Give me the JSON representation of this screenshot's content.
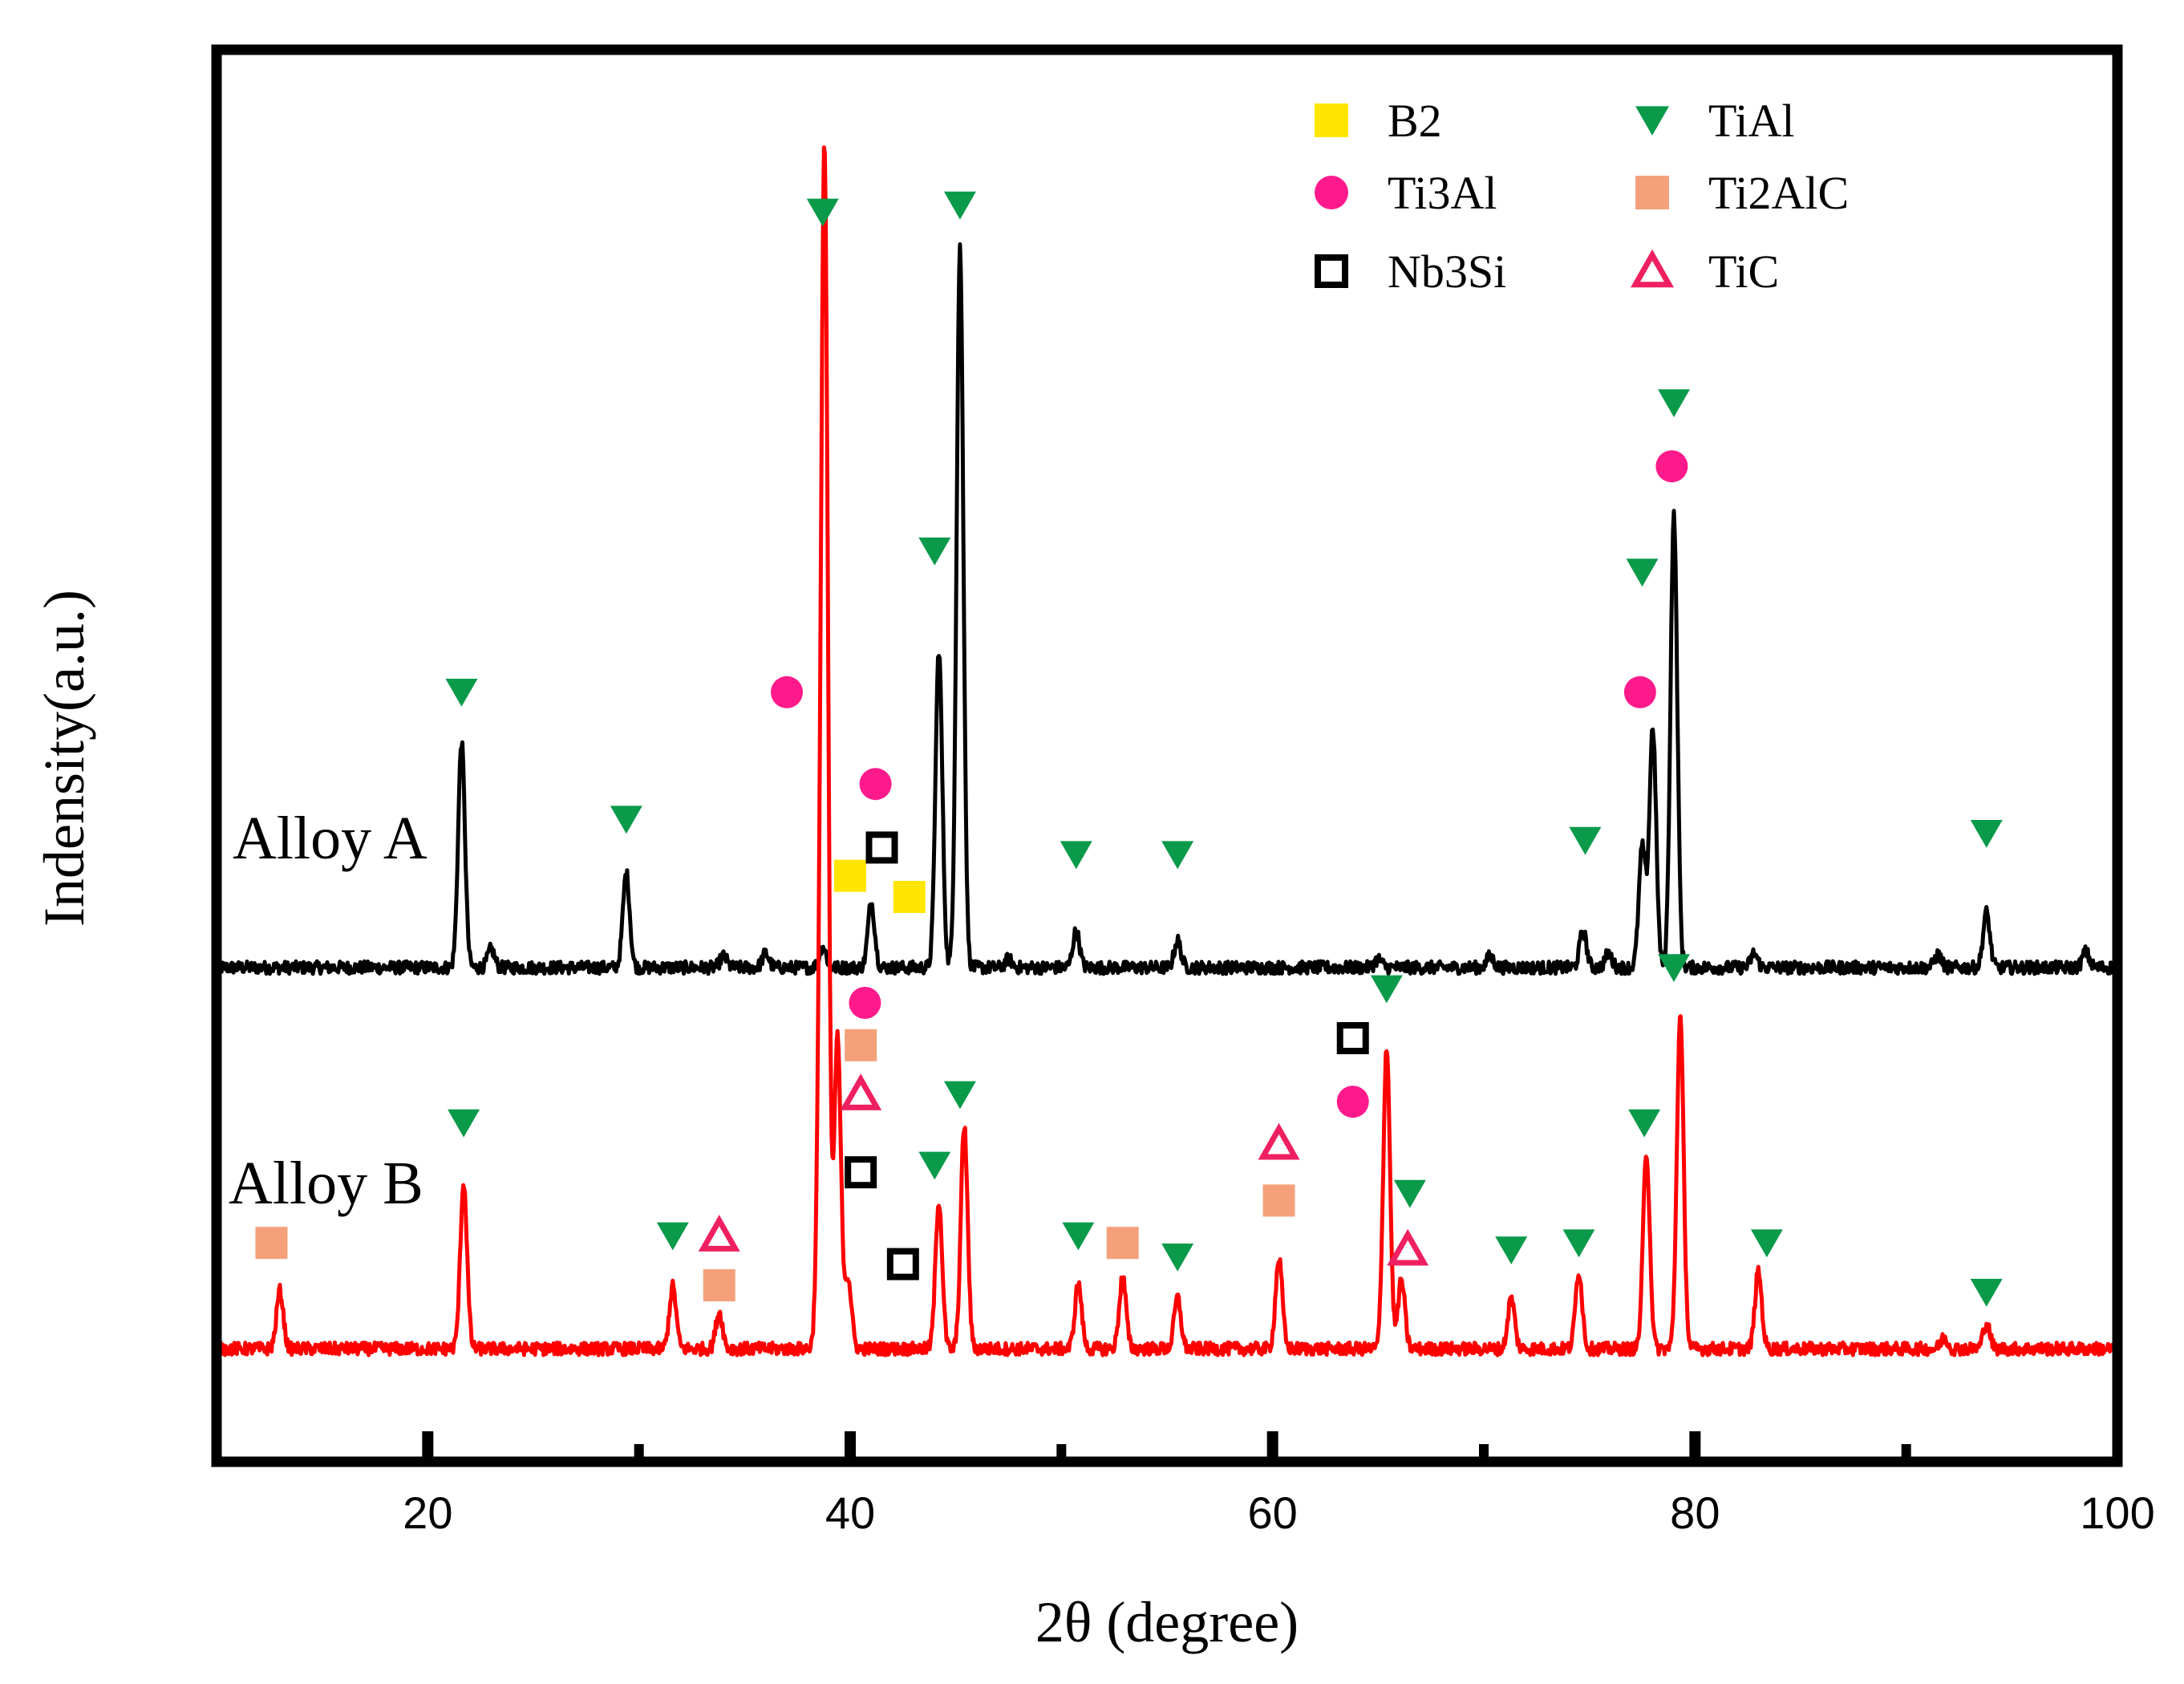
{
  "chart_data": {
    "type": "line",
    "title": "",
    "xlabel": "2θ (degree)",
    "ylabel": "Indensity(a.u.)",
    "xlim": [
      10,
      100
    ],
    "ylim": [
      0,
      100
    ],
    "xticks": [
      20,
      40,
      60,
      80,
      100
    ],
    "xtick_labels": [
      "20",
      "40",
      "60",
      "80",
      "100"
    ],
    "minor_xticks": [
      30,
      50,
      70,
      90
    ],
    "grid": false,
    "legend_position": "top-right",
    "legend": [
      {
        "key": "B2",
        "label": "B2",
        "marker": "filled-square",
        "color": "#ffe600"
      },
      {
        "key": "Ti3Al",
        "label": "Ti3Al",
        "marker": "filled-circle",
        "color": "#ff1a8c"
      },
      {
        "key": "Nb3Si",
        "label": "Nb3Si",
        "marker": "open-square",
        "color": "#000000"
      },
      {
        "key": "TiAl",
        "label": "TiAl",
        "marker": "down-triangle",
        "color": "#0a9a4a"
      },
      {
        "key": "Ti2AlC",
        "label": "Ti2AlC",
        "marker": "filled-square",
        "color": "#f4a07a"
      },
      {
        "key": "TiC",
        "label": "TiC",
        "marker": "open-triangle",
        "color": "#ee2060"
      }
    ],
    "series": [
      {
        "name": "Alloy A",
        "color": "#000000",
        "baseline": 35,
        "peaks": [
          {
            "x": 21.6,
            "h": 16
          },
          {
            "x": 23.0,
            "h": 1.3
          },
          {
            "x": 29.4,
            "h": 6.7
          },
          {
            "x": 34.0,
            "h": 0.8
          },
          {
            "x": 36.0,
            "h": 1.0
          },
          {
            "x": 38.7,
            "h": 1.5
          },
          {
            "x": 41.0,
            "h": 4.6
          },
          {
            "x": 44.2,
            "h": 22.5
          },
          {
            "x": 45.2,
            "h": 51
          },
          {
            "x": 47.5,
            "h": 0.6
          },
          {
            "x": 50.7,
            "h": 2.6
          },
          {
            "x": 55.5,
            "h": 1.9
          },
          {
            "x": 65.0,
            "h": 0.6
          },
          {
            "x": 70.3,
            "h": 0.8
          },
          {
            "x": 74.7,
            "h": 2.6
          },
          {
            "x": 75.9,
            "h": 1.0
          },
          {
            "x": 77.5,
            "h": 8.5
          },
          {
            "x": 78.0,
            "h": 17
          },
          {
            "x": 79.0,
            "h": 32
          },
          {
            "x": 82.8,
            "h": 1.0
          },
          {
            "x": 91.5,
            "h": 0.9
          },
          {
            "x": 93.8,
            "h": 3.9
          },
          {
            "x": 98.5,
            "h": 1.1
          }
        ]
      },
      {
        "name": "Alloy B",
        "color": "#ff0000",
        "baseline": 8,
        "peaks": [
          {
            "x": 13.0,
            "h": 4.1
          },
          {
            "x": 21.7,
            "h": 11.8
          },
          {
            "x": 31.6,
            "h": 4.4
          },
          {
            "x": 33.8,
            "h": 2.6
          },
          {
            "x": 38.6,
            "h": 17
          },
          {
            "x": 38.8,
            "h": 77
          },
          {
            "x": 39.4,
            "h": 22
          },
          {
            "x": 39.9,
            "h": 5
          },
          {
            "x": 44.2,
            "h": 10.5
          },
          {
            "x": 45.4,
            "h": 15.8
          },
          {
            "x": 50.8,
            "h": 4.6
          },
          {
            "x": 52.9,
            "h": 5.1
          },
          {
            "x": 55.5,
            "h": 3.6
          },
          {
            "x": 60.3,
            "h": 6.4
          },
          {
            "x": 65.4,
            "h": 21.5
          },
          {
            "x": 66.1,
            "h": 4.9
          },
          {
            "x": 71.3,
            "h": 3.6
          },
          {
            "x": 74.5,
            "h": 5.5
          },
          {
            "x": 77.7,
            "h": 13.9
          },
          {
            "x": 79.3,
            "h": 23.5
          },
          {
            "x": 83.0,
            "h": 5.5
          },
          {
            "x": 91.8,
            "h": 0.8
          },
          {
            "x": 93.8,
            "h": 1.8
          }
        ]
      }
    ],
    "curve_labels": [
      {
        "text": "Alloy A",
        "series": "Alloy A"
      },
      {
        "text": "Alloy B",
        "series": "Alloy B"
      }
    ],
    "annotations": [
      {
        "series": "Alloy A",
        "phase": "TiAl",
        "x": 21.6,
        "y": 54.5
      },
      {
        "series": "Alloy A",
        "phase": "TiAl",
        "x": 29.4,
        "y": 45.5
      },
      {
        "series": "Alloy A",
        "phase": "Ti3Al",
        "x": 37.0,
        "y": 54.5
      },
      {
        "series": "Alloy A",
        "phase": "TiAl",
        "x": 38.7,
        "y": 88.5
      },
      {
        "series": "Alloy A",
        "phase": "B2",
        "x": 40.0,
        "y": 41.5
      },
      {
        "series": "Alloy A",
        "phase": "Nb3Si",
        "x": 41.5,
        "y": 43.5
      },
      {
        "series": "Alloy A",
        "phase": "Ti3Al",
        "x": 41.2,
        "y": 48.0
      },
      {
        "series": "Alloy A",
        "phase": "B2",
        "x": 42.8,
        "y": 40.0
      },
      {
        "series": "Alloy A",
        "phase": "TiAl",
        "x": 44.0,
        "y": 64.5
      },
      {
        "series": "Alloy A",
        "phase": "TiAl",
        "x": 45.2,
        "y": 89.0
      },
      {
        "series": "Alloy A",
        "phase": "TiAl",
        "x": 50.7,
        "y": 43.0
      },
      {
        "series": "Alloy A",
        "phase": "TiAl",
        "x": 55.5,
        "y": 43.0
      },
      {
        "series": "Alloy A",
        "phase": "TiAl",
        "x": 74.8,
        "y": 44.0
      },
      {
        "series": "Alloy A",
        "phase": "TiAl",
        "x": 77.5,
        "y": 63.0
      },
      {
        "series": "Alloy A",
        "phase": "Ti3Al",
        "x": 77.4,
        "y": 54.5
      },
      {
        "series": "Alloy A",
        "phase": "TiAl",
        "x": 79.0,
        "y": 75.0
      },
      {
        "series": "Alloy A",
        "phase": "Ti3Al",
        "x": 78.9,
        "y": 70.5
      },
      {
        "series": "Alloy A",
        "phase": "TiAl",
        "x": 93.8,
        "y": 44.5
      },
      {
        "series": "Alloy B",
        "phase": "Ti2AlC",
        "x": 12.6,
        "y": 15.5
      },
      {
        "series": "Alloy B",
        "phase": "TiAl",
        "x": 21.7,
        "y": 24.0
      },
      {
        "series": "Alloy B",
        "phase": "TiAl",
        "x": 31.6,
        "y": 16.0
      },
      {
        "series": "Alloy B",
        "phase": "TiC",
        "x": 33.8,
        "y": 16.0
      },
      {
        "series": "Alloy B",
        "phase": "Ti2AlC",
        "x": 33.8,
        "y": 12.5
      },
      {
        "series": "Alloy B",
        "phase": "Ti3Al",
        "x": 40.7,
        "y": 32.5
      },
      {
        "series": "Alloy B",
        "phase": "Ti2AlC",
        "x": 40.5,
        "y": 29.5
      },
      {
        "series": "Alloy B",
        "phase": "TiC",
        "x": 40.5,
        "y": 26.0
      },
      {
        "series": "Alloy B",
        "phase": "Nb3Si",
        "x": 40.5,
        "y": 20.5
      },
      {
        "series": "Alloy B",
        "phase": "Nb3Si",
        "x": 42.5,
        "y": 14.0
      },
      {
        "series": "Alloy B",
        "phase": "TiAl",
        "x": 44.0,
        "y": 21.0
      },
      {
        "series": "Alloy B",
        "phase": "TiAl",
        "x": 45.2,
        "y": 26.0
      },
      {
        "series": "Alloy B",
        "phase": "TiAl",
        "x": 50.8,
        "y": 16.0
      },
      {
        "series": "Alloy B",
        "phase": "Ti2AlC",
        "x": 52.9,
        "y": 15.5
      },
      {
        "series": "Alloy B",
        "phase": "TiAl",
        "x": 55.5,
        "y": 14.5
      },
      {
        "series": "Alloy B",
        "phase": "TiC",
        "x": 60.3,
        "y": 22.5
      },
      {
        "series": "Alloy B",
        "phase": "Ti2AlC",
        "x": 60.3,
        "y": 18.5
      },
      {
        "series": "Alloy B",
        "phase": "Nb3Si",
        "x": 63.8,
        "y": 30.0
      },
      {
        "series": "Alloy B",
        "phase": "Ti3Al",
        "x": 63.8,
        "y": 25.5
      },
      {
        "series": "Alloy B",
        "phase": "TiAl",
        "x": 65.4,
        "y": 33.5
      },
      {
        "series": "Alloy B",
        "phase": "TiAl",
        "x": 66.5,
        "y": 19.0
      },
      {
        "series": "Alloy B",
        "phase": "TiC",
        "x": 66.4,
        "y": 15.0
      },
      {
        "series": "Alloy B",
        "phase": "TiAl",
        "x": 71.3,
        "y": 15.0
      },
      {
        "series": "Alloy B",
        "phase": "TiAl",
        "x": 74.5,
        "y": 15.5
      },
      {
        "series": "Alloy B",
        "phase": "TiAl",
        "x": 77.6,
        "y": 24.0
      },
      {
        "series": "Alloy B",
        "phase": "TiAl",
        "x": 79.0,
        "y": 35.0
      },
      {
        "series": "Alloy B",
        "phase": "TiAl",
        "x": 83.4,
        "y": 15.5
      },
      {
        "series": "Alloy B",
        "phase": "TiAl",
        "x": 93.8,
        "y": 12.0
      }
    ]
  }
}
